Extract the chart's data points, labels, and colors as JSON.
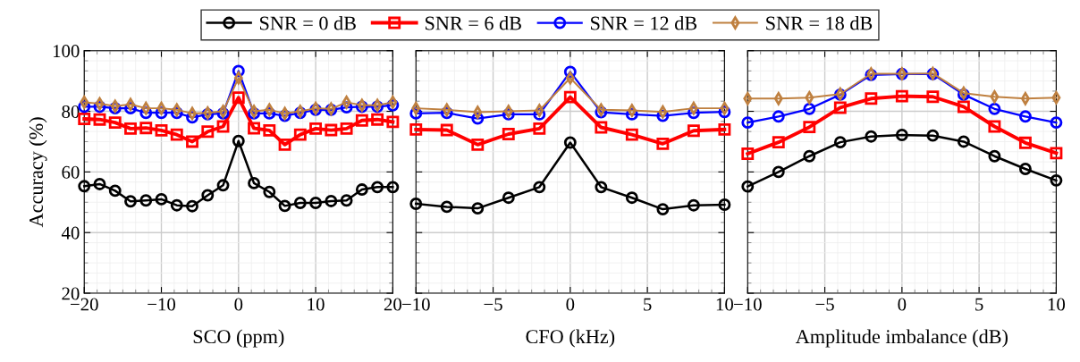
{
  "chart_data": [
    {
      "type": "line",
      "xlabel": "SCO (ppm)",
      "ylabel": "Accuracy (%)",
      "legend": "top",
      "grid": true,
      "line_style": "solid",
      "x": [
        -20,
        -18,
        -16,
        -14,
        -12,
        -10,
        -8,
        -6,
        -4,
        -2,
        0,
        2,
        4,
        6,
        8,
        10,
        12,
        14,
        16,
        18,
        20
      ],
      "xlim": [
        -20,
        20
      ],
      "xticks": [
        {
          "value": -20,
          "label": "−20"
        },
        {
          "value": -10,
          "label": "−10"
        },
        0,
        10,
        20
      ],
      "ylim": [
        20,
        100
      ],
      "yticks": [
        20,
        40,
        60,
        80,
        100
      ],
      "series": [
        {
          "name": "SNR = 0 dB",
          "color": "#000000",
          "marker": "circle",
          "values": [
            55.3,
            56,
            53.8,
            50.3,
            50.6,
            51,
            49,
            48.7,
            52.3,
            55.6,
            70.2,
            56.3,
            53.4,
            48.8,
            49.8,
            49.8,
            50.4,
            50.6,
            54.2,
            55,
            55
          ]
        },
        {
          "name": "SNR = 6 dB",
          "color": "#ff0000",
          "marker": "square",
          "values": [
            77.5,
            77.3,
            76.3,
            74.3,
            74.5,
            73.7,
            72.3,
            70,
            73.3,
            75,
            84.5,
            74.4,
            73.7,
            69,
            72.3,
            74.3,
            73.8,
            74.3,
            77,
            77.3,
            76.5
          ]
        },
        {
          "name": "SNR = 12 dB",
          "color": "#0000ff",
          "marker": "circle",
          "values": [
            81.5,
            81.5,
            81,
            81,
            79.5,
            79.5,
            79.5,
            78,
            79,
            79.3,
            93.3,
            79.3,
            79.3,
            78.5,
            79.5,
            80.5,
            80.5,
            81.3,
            81.5,
            81.5,
            82
          ]
        },
        {
          "name": "SNR = 18 dB",
          "color": "#bf8040",
          "marker": "diamond",
          "values": [
            83,
            82.5,
            81.7,
            82.3,
            81,
            81,
            80.5,
            79.3,
            79.5,
            80,
            91,
            80,
            80.5,
            79.3,
            80,
            81,
            80.8,
            83,
            82,
            82,
            83
          ]
        }
      ]
    },
    {
      "type": "line",
      "xlabel": "CFO (kHz)",
      "grid": true,
      "line_style": "solid",
      "tick_labels": "x",
      "x": [
        -10,
        -8,
        -6,
        -4,
        -2,
        0,
        2,
        4,
        6,
        8,
        10
      ],
      "xlim": [
        -10,
        10
      ],
      "xticks": [
        {
          "value": -10,
          "label": "−10"
        },
        {
          "value": -5,
          "label": "−5"
        },
        0,
        5,
        10
      ],
      "ylim": [
        20,
        100
      ],
      "yticks": [
        20,
        40,
        60,
        80,
        100
      ],
      "series": [
        {
          "name": "SNR = 0 dB",
          "color": "#000000",
          "marker": "circle",
          "values": [
            49.5,
            48.5,
            48,
            51.5,
            55,
            69.7,
            55,
            51.5,
            47.7,
            49,
            49.2
          ]
        },
        {
          "name": "SNR = 6 dB",
          "color": "#ff0000",
          "marker": "square",
          "values": [
            74,
            73.8,
            69,
            72.5,
            74.3,
            84.7,
            74.7,
            72.3,
            69.3,
            73.6,
            74
          ]
        },
        {
          "name": "SNR = 12 dB",
          "color": "#0000ff",
          "marker": "circle",
          "values": [
            79.3,
            79.5,
            77.6,
            79,
            79,
            93,
            79.7,
            79,
            78.5,
            79.5,
            79.8
          ]
        },
        {
          "name": "SNR = 18 dB",
          "color": "#bf8040",
          "marker": "diamond",
          "values": [
            81,
            80.5,
            79.7,
            80,
            80.3,
            91,
            80.5,
            80.3,
            79.8,
            81,
            81
          ]
        }
      ]
    },
    {
      "type": "line",
      "xlabel": "Amplitude imbalance (dB)",
      "grid": true,
      "line_style": "solid",
      "tick_labels": "x",
      "x": [
        -10,
        -8,
        -6,
        -4,
        -2,
        0,
        2,
        4,
        6,
        8,
        10
      ],
      "xlim": [
        -10,
        10
      ],
      "xticks": [
        {
          "value": -10,
          "label": "−10"
        },
        {
          "value": -5,
          "label": "−5"
        },
        0,
        5,
        10
      ],
      "ylim": [
        20,
        100
      ],
      "yticks": [
        20,
        40,
        60,
        80,
        100
      ],
      "series": [
        {
          "name": "SNR = 0 dB",
          "color": "#000000",
          "marker": "circle",
          "values": [
            55.2,
            60,
            65.2,
            69.8,
            71.7,
            72.2,
            72,
            70,
            65.2,
            61,
            57.2
          ]
        },
        {
          "name": "SNR = 6 dB",
          "color": "#ff0000",
          "marker": "square",
          "values": [
            66,
            69.8,
            74.8,
            81.2,
            84.2,
            85,
            84.8,
            81.5,
            75,
            69.6,
            66.2
          ]
        },
        {
          "name": "SNR = 12 dB",
          "color": "#0000ff",
          "marker": "circle",
          "values": [
            76.3,
            78.3,
            80.8,
            85.5,
            92,
            92.3,
            92.3,
            85.5,
            80.8,
            78.3,
            76.3
          ]
        },
        {
          "name": "SNR = 18 dB",
          "color": "#bf8040",
          "marker": "diamond",
          "values": [
            84.2,
            84.2,
            84.5,
            85.7,
            92.4,
            92.4,
            92.5,
            86,
            84.8,
            84.2,
            84.5
          ]
        }
      ]
    }
  ]
}
